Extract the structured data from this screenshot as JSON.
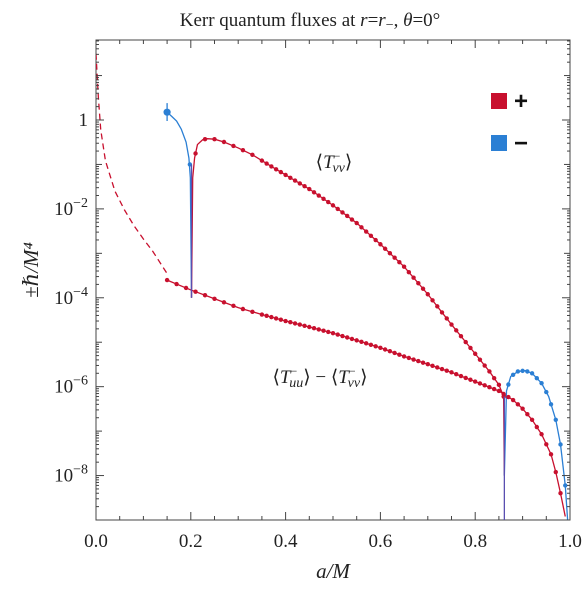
{
  "chart_data": {
    "type": "scatter",
    "title": "Kerr quantum fluxes at r=r₋, θ=0°",
    "xlabel": "a/M",
    "ylabel": "±ℏ/M⁴",
    "xlim": [
      0.0,
      1.0
    ],
    "ylim_log10": [
      -9,
      1.8
    ],
    "yscale": "log",
    "grid": false,
    "legend_position": "top-right",
    "x_ticks": [
      {
        "value": 0.0,
        "label": "0.0"
      },
      {
        "value": 0.2,
        "label": "0.2"
      },
      {
        "value": 0.4,
        "label": "0.4"
      },
      {
        "value": 0.6,
        "label": "0.6"
      },
      {
        "value": 0.8,
        "label": "0.8"
      },
      {
        "value": 1.0,
        "label": "1.0"
      }
    ],
    "y_ticks": [
      {
        "value_log10": 0,
        "label": "1"
      },
      {
        "value_log10": -2,
        "label": "10^-2"
      },
      {
        "value_log10": -4,
        "label": "10^-4"
      },
      {
        "value_log10": -6,
        "label": "10^-6"
      },
      {
        "value_log10": -8,
        "label": "10^-8"
      }
    ],
    "series": [
      {
        "name": "+",
        "color": "#c8102e"
      },
      {
        "name": "−",
        "color": "#2b7fd4"
      }
    ],
    "annotations": [
      {
        "text": "⟨T⁻_vv⟩"
      },
      {
        "text": "⟨T⁻_uu⟩ − ⟨T⁻_vv⟩"
      }
    ],
    "curves": {
      "Tvv": {
        "minus_branch": [
          [
            0.15,
            1.5
          ],
          [
            0.16,
            1.2
          ],
          [
            0.17,
            0.95
          ],
          [
            0.18,
            0.62
          ],
          [
            0.19,
            0.32
          ],
          [
            0.196,
            0.14
          ],
          [
            0.199,
            0.05
          ],
          [
            0.2015,
            0.0001
          ]
        ],
        "plus_branch": [
          [
            0.2015,
            0.0001
          ],
          [
            0.204,
            0.05
          ],
          [
            0.208,
            0.14
          ],
          [
            0.214,
            0.28
          ],
          [
            0.225,
            0.36
          ],
          [
            0.235,
            0.38
          ],
          [
            0.25,
            0.37
          ],
          [
            0.27,
            0.32
          ],
          [
            0.3,
            0.235
          ],
          [
            0.33,
            0.165
          ],
          [
            0.37,
            0.09
          ],
          [
            0.4,
            0.058
          ],
          [
            0.45,
            0.028
          ],
          [
            0.5,
            0.012
          ],
          [
            0.55,
            0.0048
          ],
          [
            0.6,
            0.0016
          ],
          [
            0.65,
            0.0005
          ],
          [
            0.7,
            0.00012
          ],
          [
            0.75,
            2.5e-05
          ],
          [
            0.8,
            5.5e-06
          ],
          [
            0.83,
            2.2e-06
          ],
          [
            0.85,
            1.1e-06
          ],
          [
            0.86,
            6e-07
          ],
          [
            0.8615,
            1e-08
          ]
        ],
        "minus_branch_2": [
          [
            0.8615,
            1e-08
          ],
          [
            0.866,
            8e-07
          ],
          [
            0.875,
            1.7e-06
          ],
          [
            0.89,
            2.2e-06
          ],
          [
            0.905,
            2.3e-06
          ],
          [
            0.92,
            2e-06
          ],
          [
            0.94,
            1.2e-06
          ],
          [
            0.955,
            6e-07
          ],
          [
            0.97,
            1.8e-07
          ],
          [
            0.98,
            5e-08
          ],
          [
            0.99,
            6e-09
          ],
          [
            0.995,
            1e-09
          ]
        ]
      },
      "Tuu_minus_Tvv": {
        "dashed": [
          [
            0.0,
            31
          ],
          [
            0.005,
            3.2
          ],
          [
            0.01,
            0.6
          ],
          [
            0.02,
            0.12
          ],
          [
            0.04,
            0.025
          ],
          [
            0.06,
            0.0095
          ],
          [
            0.08,
            0.0042
          ],
          [
            0.1,
            0.0021
          ],
          [
            0.12,
            0.0011
          ],
          [
            0.15,
            0.00035
          ]
        ],
        "plus": [
          [
            0.15,
            0.00025
          ],
          [
            0.2,
            0.00015
          ],
          [
            0.25,
            9.5e-05
          ],
          [
            0.3,
            6e-05
          ],
          [
            0.35,
            4.2e-05
          ],
          [
            0.4,
            3e-05
          ],
          [
            0.45,
            2.2e-05
          ],
          [
            0.5,
            1.6e-05
          ],
          [
            0.55,
            1.1e-05
          ],
          [
            0.6,
            7.5e-06
          ],
          [
            0.65,
            4.8e-06
          ],
          [
            0.7,
            3.2e-06
          ],
          [
            0.75,
            2.1e-06
          ],
          [
            0.8,
            1.3e-06
          ],
          [
            0.85,
            8e-07
          ],
          [
            0.88,
            5e-07
          ],
          [
            0.9,
            3.2e-07
          ],
          [
            0.92,
            1.8e-07
          ],
          [
            0.94,
            8.5e-08
          ],
          [
            0.96,
            3e-08
          ],
          [
            0.97,
            1.2e-08
          ],
          [
            0.98,
            4e-09
          ],
          [
            0.99,
            1.2e-09
          ]
        ]
      }
    }
  }
}
